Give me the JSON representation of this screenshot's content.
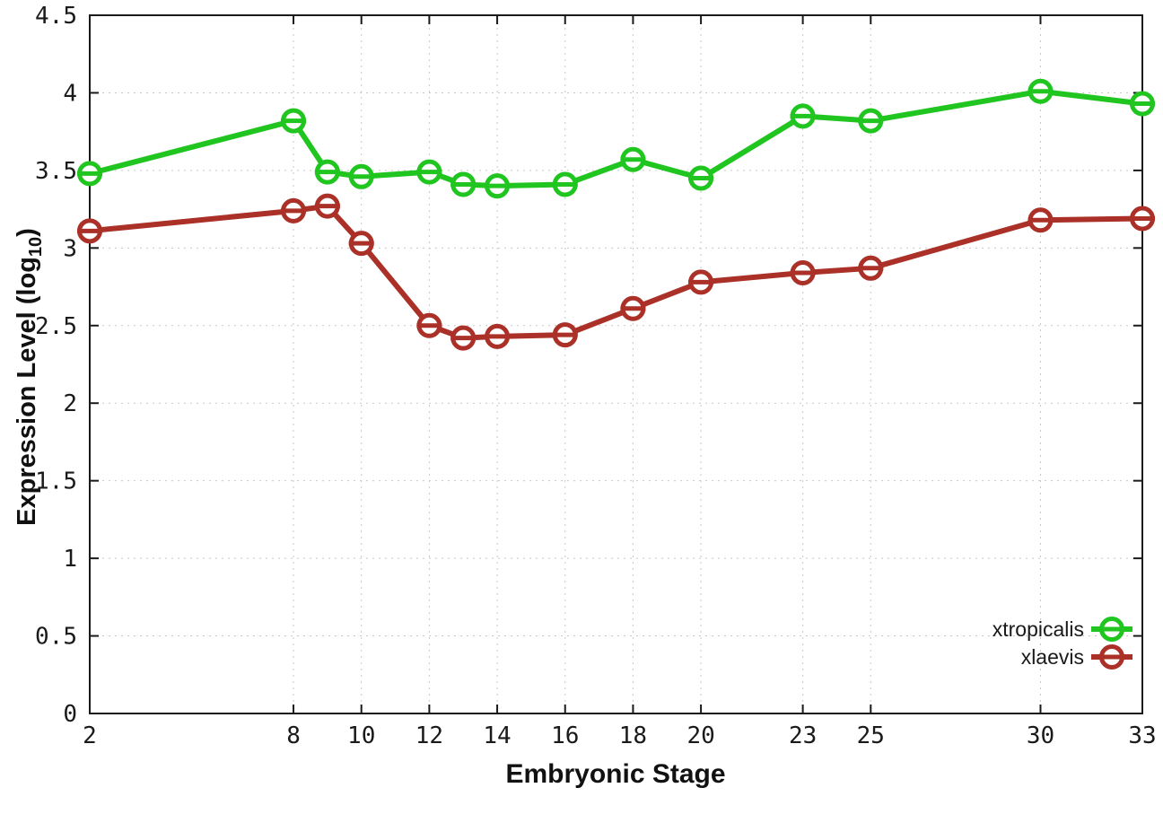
{
  "chart_data": {
    "type": "line",
    "title": "",
    "xlabel": "Embryonic Stage",
    "ylabel": {
      "text_before_sub": "Expression Level (log",
      "subscript": "10",
      "text_after_sub": ")"
    },
    "x": [
      2,
      8,
      9,
      10,
      12,
      13,
      14,
      16,
      18,
      20,
      23,
      25,
      30,
      33
    ],
    "series": [
      {
        "name": "xtropicalis",
        "color": "#20c520",
        "values": [
          3.48,
          3.82,
          3.49,
          3.46,
          3.49,
          3.41,
          3.4,
          3.41,
          3.57,
          3.45,
          3.85,
          3.82,
          4.01,
          3.93
        ]
      },
      {
        "name": "xlaevis",
        "color": "#aa3028",
        "values": [
          3.11,
          3.24,
          3.27,
          3.03,
          2.5,
          2.42,
          2.43,
          2.44,
          2.61,
          2.78,
          2.84,
          2.87,
          3.18,
          3.19
        ]
      }
    ],
    "xlim": [
      2,
      33
    ],
    "ylim": [
      0,
      4.5
    ],
    "x_ticks": [
      2,
      8,
      10,
      12,
      14,
      16,
      18,
      20,
      23,
      25,
      30,
      33
    ],
    "x_tick_labels": [
      "2",
      "8",
      "10",
      "12",
      "14",
      "16",
      "18",
      "20",
      "23",
      "25",
      "30",
      "33"
    ],
    "y_ticks": [
      0,
      0.5,
      1,
      1.5,
      2,
      2.5,
      3,
      3.5,
      4,
      4.5
    ],
    "y_tick_labels": [
      "0",
      "0.5",
      "1",
      "1.5",
      "2",
      "2.5",
      "3",
      "3.5",
      "4",
      "4.5"
    ],
    "grid": true,
    "legend_position": "bottom-right",
    "marker": "open-circle-with-bar"
  },
  "colors": {
    "background": "#ffffff",
    "axis": "#1a1a1a",
    "grid": "#c8c8c8",
    "text": "#1a1a1a"
  }
}
